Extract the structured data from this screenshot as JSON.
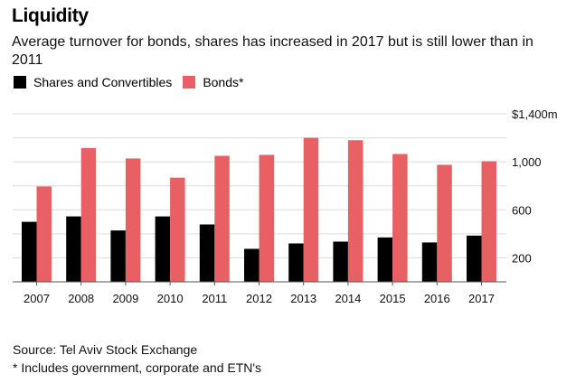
{
  "chart_data": {
    "type": "bar",
    "title": "Liquidity",
    "subtitle": "Average turnover for bonds, shares has increased in 2017 but is still lower than in 2011",
    "xlabel": "",
    "ylabel": "",
    "categories": [
      "2007",
      "2008",
      "2009",
      "2010",
      "2011",
      "2012",
      "2013",
      "2014",
      "2015",
      "2016",
      "2017"
    ],
    "series": [
      {
        "name": "Shares and Convertibles",
        "color": "#000000",
        "values": [
          500,
          545,
          428,
          545,
          478,
          275,
          320,
          335,
          370,
          328,
          385
        ]
      },
      {
        "name": "Bonds*",
        "color": "#e96064",
        "values": [
          795,
          1115,
          1028,
          868,
          1050,
          1058,
          1200,
          1180,
          1065,
          975,
          1005
        ]
      }
    ],
    "ylim": [
      0,
      1400
    ],
    "gridlines": [
      200,
      400,
      600,
      800,
      1000,
      1200,
      1400
    ],
    "yticks": [
      {
        "value": 1400,
        "label": "$1,400m"
      },
      {
        "value": 1000,
        "label": "1,000"
      },
      {
        "value": 600,
        "label": "600"
      },
      {
        "value": 200,
        "label": "200"
      }
    ],
    "grid": true,
    "legend_position": "top-left",
    "yaxis_side": "right"
  },
  "footer": {
    "source": "Source: Tel Aviv Stock Exchange",
    "note": "* Includes government, corporate and ETN's"
  }
}
